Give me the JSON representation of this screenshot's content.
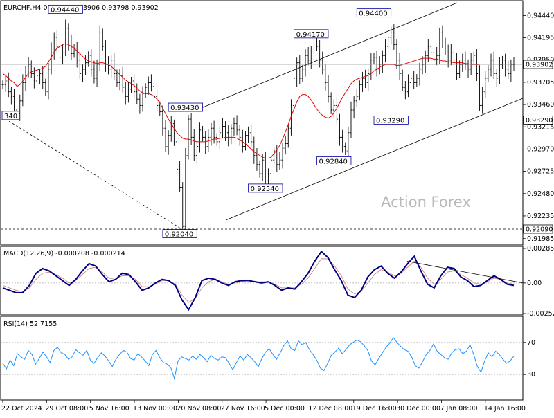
{
  "chart_data": [
    {
      "type": "candlestick",
      "panel": "price",
      "title": "EURCHF,H4  0.93813 0.93906 0.93798 0.93902",
      "symbol": "EURCHF",
      "timeframe": "H4",
      "ohlc_last": {
        "open": 0.93813,
        "high": 0.93906,
        "low": 0.93798,
        "close": 0.93902
      },
      "watermark": "Action Forex",
      "ylim": [
        0.9193,
        0.9458
      ],
      "y_ticks": [
        "0.94440",
        "0.94195",
        "0.93950",
        "0.93705",
        "0.93460",
        "0.93215",
        "0.92970",
        "0.92725",
        "0.92480",
        "0.92235",
        "0.91985"
      ],
      "y_tick_values": [
        0.9444,
        0.94195,
        0.9395,
        0.93705,
        0.9346,
        0.93215,
        0.9297,
        0.92725,
        0.9248,
        0.92235,
        0.91985
      ],
      "x_ticks": [
        "22 Oct 2024",
        "29 Oct 08:00",
        "5 Nov 16:00",
        "13 Nov 00:00",
        "20 Nov 08:00",
        "27 Nov 16:00",
        "5 Dec 00:00",
        "12 Dec 08:00",
        "19 Dec 16:00",
        "30 Dec 00:00",
        "7 Jan 08:00",
        "14 Jan 16:00"
      ],
      "price_tag": "0.93902",
      "price_tag_value": 0.93902,
      "level_lines": [
        {
          "value": 0.9329,
          "label": "0.93290"
        },
        {
          "value": 0.9209,
          "label": "0.92090"
        }
      ],
      "annotations": [
        {
          "label": "0.94440",
          "value": 0.9444,
          "bar": 22
        },
        {
          "label": "0.94170",
          "value": 0.9417,
          "bar": 108
        },
        {
          "label": "0.94400",
          "value": 0.944,
          "bar": 130
        },
        {
          "label": "0.93430",
          "value": 0.9343,
          "bar": 64
        },
        {
          "label": "0.93290",
          "value": 0.9329,
          "bar": 136
        },
        {
          "label": "0.92840",
          "value": 0.9284,
          "bar": 116
        },
        {
          "label": "0.92540",
          "value": 0.9254,
          "bar": 92
        },
        {
          "label": "0.92040",
          "value": 0.9204,
          "bar": 62
        },
        {
          "label": "340",
          "value": 0.9334,
          "bar": 0
        }
      ],
      "series": [
        {
          "name": "close",
          "values": [
            0.9368,
            0.9372,
            0.936,
            0.9355,
            0.934,
            0.9336,
            0.935,
            0.937,
            0.9383,
            0.939,
            0.938,
            0.9372,
            0.9378,
            0.938,
            0.937,
            0.936,
            0.9385,
            0.9405,
            0.942,
            0.941,
            0.9398,
            0.9405,
            0.943,
            0.9415,
            0.9402,
            0.9408,
            0.9395,
            0.938,
            0.9385,
            0.9392,
            0.94,
            0.9385,
            0.9375,
            0.939,
            0.9425,
            0.941,
            0.939,
            0.9385,
            0.9395,
            0.938,
            0.937,
            0.9378,
            0.9365,
            0.9355,
            0.9363,
            0.9372,
            0.936,
            0.9352,
            0.9345,
            0.9358,
            0.9365,
            0.937,
            0.9366,
            0.9355,
            0.9345,
            0.9338,
            0.932,
            0.93,
            0.9312,
            0.9325,
            0.9305,
            0.9275,
            0.9255,
            0.9212,
            0.929,
            0.933,
            0.931,
            0.929,
            0.93,
            0.9318,
            0.931,
            0.93,
            0.931,
            0.932,
            0.931,
            0.9305,
            0.9315,
            0.9322,
            0.9315,
            0.9307,
            0.932,
            0.9325,
            0.9318,
            0.931,
            0.93,
            0.9312,
            0.9315,
            0.9305,
            0.929,
            0.928,
            0.927,
            0.9285,
            0.9262,
            0.927,
            0.9285,
            0.9295,
            0.928,
            0.9285,
            0.9298,
            0.9303,
            0.932,
            0.9345,
            0.9375,
            0.9392,
            0.9375,
            0.9385,
            0.94,
            0.9395,
            0.9405,
            0.9415,
            0.941,
            0.9395,
            0.9385,
            0.937,
            0.9355,
            0.934,
            0.9345,
            0.933,
            0.931,
            0.93,
            0.9295,
            0.9315,
            0.934,
            0.935,
            0.9355,
            0.9368,
            0.9375,
            0.937,
            0.938,
            0.9395,
            0.9398,
            0.9385,
            0.939,
            0.94,
            0.941,
            0.942,
            0.9425,
            0.9412,
            0.9395,
            0.938,
            0.9365,
            0.936,
            0.937,
            0.9375,
            0.937,
            0.9375,
            0.9385,
            0.939,
            0.94,
            0.941,
            0.9403,
            0.9395,
            0.94,
            0.9425,
            0.9415,
            0.9405,
            0.9395,
            0.9403,
            0.9395,
            0.938,
            0.939,
            0.9395,
            0.939,
            0.9385,
            0.9395,
            0.94,
            0.938,
            0.9345,
            0.936,
            0.9375,
            0.9385,
            0.9395,
            0.938,
            0.9375,
            0.939,
            0.9395,
            0.9385,
            0.938,
            0.939,
            0.939
          ]
        },
        {
          "name": "moving average",
          "values": [
            0.938,
            0.9378,
            0.9375,
            0.9372,
            0.937,
            0.9366,
            0.9368,
            0.9372,
            0.9376,
            0.938,
            0.9382,
            0.9383,
            0.9384,
            0.9385,
            0.9386,
            0.9388,
            0.9393,
            0.9398,
            0.9404,
            0.9408,
            0.941,
            0.9412,
            0.9413,
            0.9412,
            0.941,
            0.9408,
            0.9405,
            0.9402,
            0.9399,
            0.9396,
            0.9394,
            0.9393,
            0.9392,
            0.9391,
            0.9392,
            0.9392,
            0.9391,
            0.939,
            0.9388,
            0.9385,
            0.9382,
            0.9379,
            0.9376,
            0.9373,
            0.9371,
            0.9369,
            0.9367,
            0.9364,
            0.9361,
            0.9359,
            0.9358,
            0.9358,
            0.9357,
            0.9355,
            0.9352,
            0.9348,
            0.9342,
            0.9336,
            0.933,
            0.9325,
            0.932,
            0.9315,
            0.9312,
            0.9309,
            0.9308,
            0.9308,
            0.9307,
            0.9306,
            0.9305,
            0.9305,
            0.9305,
            0.9305,
            0.9306,
            0.9307,
            0.9308,
            0.9308,
            0.9309,
            0.9309,
            0.931,
            0.931,
            0.931,
            0.931,
            0.9309,
            0.9307,
            0.9305,
            0.9303,
            0.93,
            0.9297,
            0.9294,
            0.9292,
            0.929,
            0.9288,
            0.9287,
            0.9287,
            0.9288,
            0.9292,
            0.9296,
            0.9301,
            0.9308,
            0.9316,
            0.9324,
            0.9333,
            0.9341,
            0.9349,
            0.9355,
            0.9357,
            0.9357,
            0.9355,
            0.9351,
            0.9346,
            0.9341,
            0.9337,
            0.9334,
            0.9332,
            0.9331,
            0.9333,
            0.9337,
            0.9342,
            0.9348,
            0.9354,
            0.9359,
            0.9364,
            0.9369,
            0.9372,
            0.9374,
            0.9375,
            0.9376,
            0.9377,
            0.9378,
            0.938,
            0.9383,
            0.9385,
            0.9387,
            0.9389,
            0.939,
            0.939,
            0.939,
            0.939,
            0.9389,
            0.9389,
            0.939,
            0.9391,
            0.9392,
            0.9393,
            0.9394,
            0.9395,
            0.9396,
            0.9397,
            0.9397,
            0.9397,
            0.9397,
            0.9396,
            0.9396,
            0.9395,
            0.9394,
            0.9394,
            0.9393,
            0.9393,
            0.9392,
            0.9392,
            0.9392,
            0.9392,
            0.9391,
            0.9391,
            0.939,
            0.939,
            0.939,
            0.939
          ]
        }
      ]
    },
    {
      "type": "line",
      "panel": "macd",
      "title": "MACD(12,26,9) -0.000208 -0.000214",
      "ylim": [
        -0.00252,
        0.00285
      ],
      "y_ticks": [
        "0.00285",
        "0.00",
        "-0.002521"
      ],
      "y_tick_values": [
        0.00285,
        0.0,
        -0.002521
      ],
      "series": [
        {
          "name": "MACD",
          "values": [
            -0.0004,
            -0.0006,
            -0.0008,
            -0.0008,
            -0.0002,
            0.0008,
            0.0012,
            0.001,
            0.0006,
            0.0002,
            -0.0002,
            0.0003,
            0.001,
            0.0016,
            0.0014,
            0.0007,
            0.0001,
            0.0003,
            0.0008,
            0.0007,
            0.0001,
            -0.0006,
            -0.0004,
            0.0,
            0.0003,
            0.0002,
            -0.0002,
            -0.0014,
            -0.0022,
            -0.0012,
            0.0002,
            0.0004,
            0.0003,
            0.0,
            -0.0002,
            0.0001,
            0.0002,
            0.0002,
            0.0001,
            0.0,
            0.0001,
            -0.0002,
            -0.0006,
            -0.0004,
            -0.0005,
            0.0001,
            0.0008,
            0.0018,
            0.0026,
            0.0021,
            0.0011,
            0.0002,
            -0.001,
            -0.0012,
            -0.0006,
            0.0005,
            0.0011,
            0.0014,
            0.0008,
            0.0004,
            0.0009,
            0.0016,
            0.0022,
            0.001,
            -0.0001,
            -0.0004,
            0.0006,
            0.0013,
            0.0012,
            0.0005,
            0.0002,
            -0.0003,
            -0.0002,
            0.0002,
            0.0006,
            0.0003,
            -0.0001,
            -0.0002
          ]
        },
        {
          "name": "Signal",
          "values": [
            -0.0002,
            -0.0004,
            -0.0006,
            -0.0007,
            -0.0004,
            0.0003,
            0.0008,
            0.0009,
            0.0007,
            0.0004,
            0.0,
            0.0002,
            0.0007,
            0.0012,
            0.0013,
            0.0009,
            0.0004,
            0.0003,
            0.0006,
            0.0006,
            0.0003,
            -0.0003,
            -0.0003,
            -0.0001,
            0.0002,
            0.0002,
            -0.0001,
            -0.001,
            -0.0016,
            -0.0013,
            -0.0004,
            0.0001,
            0.0003,
            0.0001,
            -0.0001,
            0.0,
            0.0001,
            0.0002,
            0.0001,
            0.0001,
            0.0001,
            -0.0001,
            -0.0004,
            -0.0004,
            -0.0004,
            -0.0001,
            0.0004,
            0.0012,
            0.002,
            0.002,
            0.0014,
            0.0006,
            -0.0005,
            -0.0009,
            -0.0007,
            0.0,
            0.0007,
            0.0011,
            0.0009,
            0.0006,
            0.0008,
            0.0013,
            0.0018,
            0.0013,
            0.0004,
            -0.0001,
            0.0003,
            0.0009,
            0.001,
            0.0007,
            0.0004,
            0.0,
            -0.0001,
            0.0001,
            0.0004,
            0.0003,
            0.0,
            -0.0001
          ]
        }
      ],
      "trendline": [
        {
          "from": 0.0018,
          "to": 0.0
        }
      ]
    },
    {
      "type": "line",
      "panel": "rsi",
      "title": "RSI(14) 52.7155",
      "ylim": [
        0,
        100
      ],
      "y_ticks": [
        "70",
        "30"
      ],
      "y_tick_values": [
        70,
        30
      ],
      "series": [
        {
          "name": "RSI",
          "values": [
            44,
            37,
            48,
            41,
            56,
            52,
            49,
            60,
            55,
            43,
            50,
            58,
            52,
            45,
            60,
            64,
            57,
            55,
            49,
            52,
            61,
            57,
            54,
            60,
            48,
            44,
            51,
            57,
            53,
            47,
            40,
            49,
            55,
            60,
            58,
            50,
            48,
            56,
            52,
            47,
            41,
            55,
            60,
            51,
            45,
            43,
            39,
            25,
            47,
            52,
            50,
            48,
            53,
            49,
            55,
            51,
            46,
            54,
            50,
            48,
            52,
            51,
            44,
            36,
            45,
            53,
            48,
            55,
            51,
            46,
            40,
            50,
            58,
            62,
            55,
            49,
            57,
            66,
            72,
            62,
            60,
            72,
            67,
            70,
            61,
            55,
            48,
            38,
            35,
            44,
            54,
            58,
            63,
            56,
            61,
            67,
            70,
            73,
            71,
            66,
            60,
            47,
            42,
            50,
            57,
            64,
            69,
            76,
            70,
            65,
            61,
            59,
            52,
            41,
            38,
            46,
            55,
            60,
            68,
            59,
            55,
            51,
            49,
            57,
            61,
            62,
            56,
            59,
            67,
            55,
            40,
            33,
            47,
            57,
            52,
            59,
            55,
            49,
            44,
            47,
            53
          ]
        }
      ],
      "levels": [
        70,
        30
      ]
    }
  ]
}
